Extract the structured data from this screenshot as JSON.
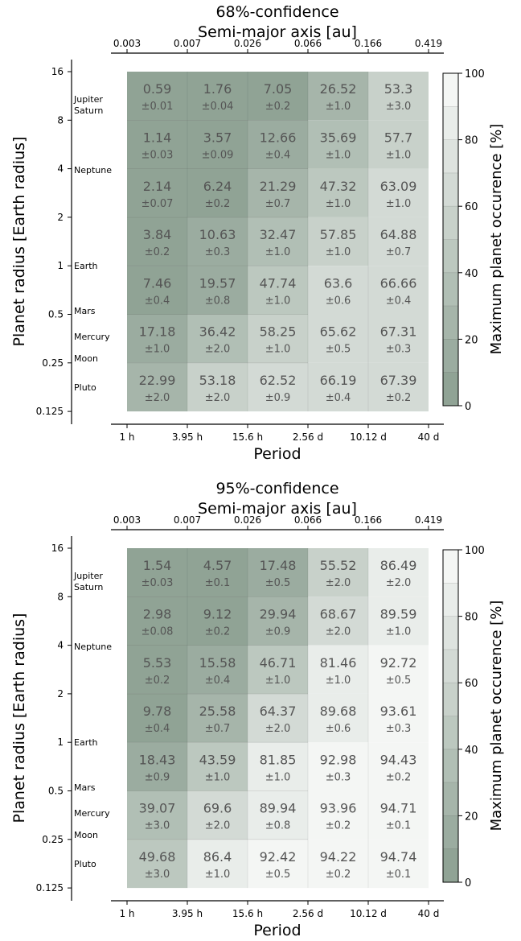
{
  "chart_data": [
    {
      "type": "heatmap",
      "title": "68%-confidence",
      "top_axis_label": "Semi-major axis [au]",
      "top_ticks": [
        "0.003",
        "0.007",
        "0.026",
        "0.066",
        "0.166",
        "0.419"
      ],
      "xlabel": "Period",
      "x_ticks": [
        "1 h",
        "3.95 h",
        "15.6 h",
        "2.56 d",
        "10.12 d",
        "40 d"
      ],
      "ylabel": "Planet radius [Earth radius]",
      "y_ticks": [
        "16",
        "8",
        "4",
        "2",
        "1",
        "0.5",
        "0.25",
        "0.125"
      ],
      "planet_labels": [
        "Jupiter",
        "Saturn",
        "Neptune",
        "Earth",
        "Mars",
        "Mercury",
        "Moon",
        "Pluto"
      ],
      "colorbar_label": "Maximum planet occurence [%]",
      "colorbar_ticks": [
        "0",
        "20",
        "40",
        "60",
        "80",
        "100"
      ],
      "zlim": [
        0,
        100
      ],
      "cells": [
        [
          {
            "v": "0.59",
            "e": "±0.01"
          },
          {
            "v": "1.76",
            "e": "±0.04"
          },
          {
            "v": "7.05",
            "e": "±0.2"
          },
          {
            "v": "26.52",
            "e": "±1.0"
          },
          {
            "v": "53.3",
            "e": "±3.0"
          }
        ],
        [
          {
            "v": "1.14",
            "e": "±0.03"
          },
          {
            "v": "3.57",
            "e": "±0.09"
          },
          {
            "v": "12.66",
            "e": "±0.4"
          },
          {
            "v": "35.69",
            "e": "±1.0"
          },
          {
            "v": "57.7",
            "e": "±1.0"
          }
        ],
        [
          {
            "v": "2.14",
            "e": "±0.07"
          },
          {
            "v": "6.24",
            "e": "±0.2"
          },
          {
            "v": "21.29",
            "e": "±0.7"
          },
          {
            "v": "47.32",
            "e": "±1.0"
          },
          {
            "v": "63.09",
            "e": "±1.0"
          }
        ],
        [
          {
            "v": "3.84",
            "e": "±0.2"
          },
          {
            "v": "10.63",
            "e": "±0.3"
          },
          {
            "v": "32.47",
            "e": "±1.0"
          },
          {
            "v": "57.85",
            "e": "±1.0"
          },
          {
            "v": "64.88",
            "e": "±0.7"
          }
        ],
        [
          {
            "v": "7.46",
            "e": "±0.4"
          },
          {
            "v": "19.57",
            "e": "±0.8"
          },
          {
            "v": "47.74",
            "e": "±1.0"
          },
          {
            "v": "63.6",
            "e": "±0.6"
          },
          {
            "v": "66.66",
            "e": "±0.4"
          }
        ],
        [
          {
            "v": "17.18",
            "e": "±1.0"
          },
          {
            "v": "36.42",
            "e": "±2.0"
          },
          {
            "v": "58.25",
            "e": "±1.0"
          },
          {
            "v": "65.62",
            "e": "±0.5"
          },
          {
            "v": "67.31",
            "e": "±0.3"
          }
        ],
        [
          {
            "v": "22.99",
            "e": "±2.0"
          },
          {
            "v": "53.18",
            "e": "±2.0"
          },
          {
            "v": "62.52",
            "e": "±0.9"
          },
          {
            "v": "66.19",
            "e": "±0.4"
          },
          {
            "v": "67.39",
            "e": "±0.2"
          }
        ]
      ]
    },
    {
      "type": "heatmap",
      "title": "95%-confidence",
      "top_axis_label": "Semi-major axis [au]",
      "top_ticks": [
        "0.003",
        "0.007",
        "0.026",
        "0.066",
        "0.166",
        "0.419"
      ],
      "xlabel": "Period",
      "x_ticks": [
        "1 h",
        "3.95 h",
        "15.6 h",
        "2.56 d",
        "10.12 d",
        "40 d"
      ],
      "ylabel": "Planet radius [Earth radius]",
      "y_ticks": [
        "16",
        "8",
        "4",
        "2",
        "1",
        "0.5",
        "0.25",
        "0.125"
      ],
      "planet_labels": [
        "Jupiter",
        "Saturn",
        "Neptune",
        "Earth",
        "Mars",
        "Mercury",
        "Moon",
        "Pluto"
      ],
      "colorbar_label": "Maximum planet occurence [%]",
      "colorbar_ticks": [
        "0",
        "20",
        "40",
        "60",
        "80",
        "100"
      ],
      "zlim": [
        0,
        100
      ],
      "cells": [
        [
          {
            "v": "1.54",
            "e": "±0.03"
          },
          {
            "v": "4.57",
            "e": "±0.1"
          },
          {
            "v": "17.48",
            "e": "±0.5"
          },
          {
            "v": "55.52",
            "e": "±2.0"
          },
          {
            "v": "86.49",
            "e": "±2.0"
          }
        ],
        [
          {
            "v": "2.98",
            "e": "±0.08"
          },
          {
            "v": "9.12",
            "e": "±0.2"
          },
          {
            "v": "29.94",
            "e": "±0.9"
          },
          {
            "v": "68.67",
            "e": "±2.0"
          },
          {
            "v": "89.59",
            "e": "±1.0"
          }
        ],
        [
          {
            "v": "5.53",
            "e": "±0.2"
          },
          {
            "v": "15.58",
            "e": "±0.4"
          },
          {
            "v": "46.71",
            "e": "±1.0"
          },
          {
            "v": "81.46",
            "e": "±1.0"
          },
          {
            "v": "92.72",
            "e": "±0.5"
          }
        ],
        [
          {
            "v": "9.78",
            "e": "±0.4"
          },
          {
            "v": "25.58",
            "e": "±0.7"
          },
          {
            "v": "64.37",
            "e": "±2.0"
          },
          {
            "v": "89.68",
            "e": "±0.6"
          },
          {
            "v": "93.61",
            "e": "±0.3"
          }
        ],
        [
          {
            "v": "18.43",
            "e": "±0.9"
          },
          {
            "v": "43.59",
            "e": "±1.0"
          },
          {
            "v": "81.85",
            "e": "±1.0"
          },
          {
            "v": "92.98",
            "e": "±0.3"
          },
          {
            "v": "94.43",
            "e": "±0.2"
          }
        ],
        [
          {
            "v": "39.07",
            "e": "±3.0"
          },
          {
            "v": "69.6",
            "e": "±2.0"
          },
          {
            "v": "89.94",
            "e": "±0.8"
          },
          {
            "v": "93.96",
            "e": "±0.2"
          },
          {
            "v": "94.71",
            "e": "±0.1"
          }
        ],
        [
          {
            "v": "49.68",
            "e": "±3.0"
          },
          {
            "v": "86.4",
            "e": "±1.0"
          },
          {
            "v": "92.42",
            "e": "±0.5"
          },
          {
            "v": "94.22",
            "e": "±0.2"
          },
          {
            "v": "94.74",
            "e": "±0.1"
          }
        ]
      ]
    }
  ]
}
